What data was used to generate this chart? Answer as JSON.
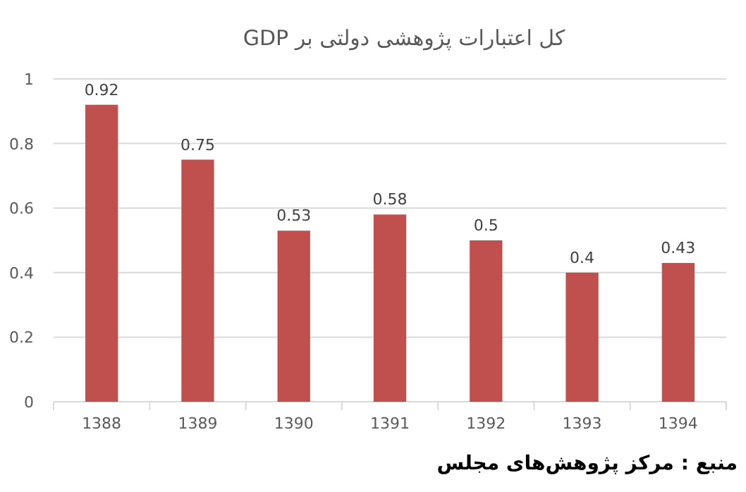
{
  "chart_data": {
    "type": "bar",
    "title": "کل اعتبارات پژوهشی دولتی بر GDP",
    "categories": [
      "1388",
      "1389",
      "1390",
      "1391",
      "1392",
      "1393",
      "1394"
    ],
    "values": [
      0.92,
      0.75,
      0.53,
      0.58,
      0.5,
      0.4,
      0.43
    ],
    "color": "#c0504d",
    "ylim": [
      0,
      1
    ],
    "yticks": [
      0,
      0.2,
      0.4,
      0.6,
      0.8,
      1
    ],
    "grid": "y",
    "data_labels": true,
    "annotations": [
      "منبع : مرکز پژوهش‌های مجلس"
    ]
  }
}
